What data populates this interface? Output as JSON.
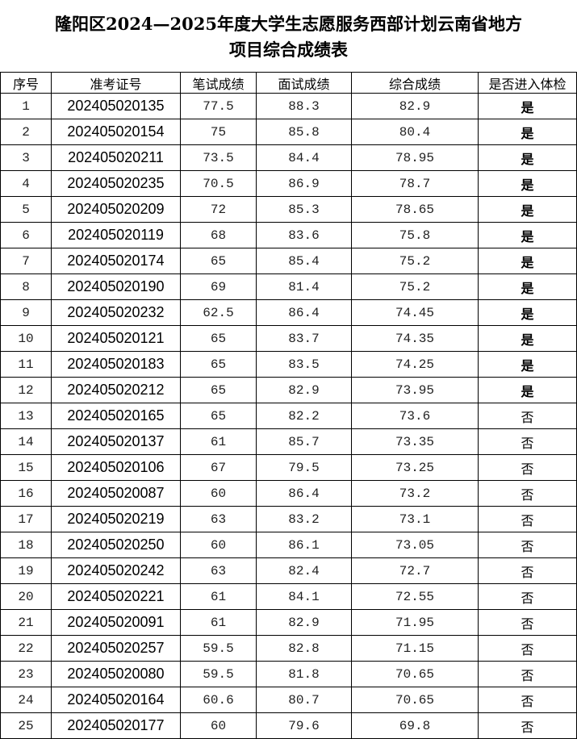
{
  "title_line1": "隆阳区2024—2025年度大学生志愿服务西部计划云南省地方",
  "title_line2": "项目综合成绩表",
  "headers": [
    "序号",
    "准考证号",
    "笔试成绩",
    "面试成绩",
    "综合成绩",
    "是否进入体检"
  ],
  "rows": [
    [
      "1",
      "202405020135",
      "77.5",
      "88.3",
      "82.9",
      "是"
    ],
    [
      "2",
      "202405020154",
      "75",
      "85.8",
      "80.4",
      "是"
    ],
    [
      "3",
      "202405020211",
      "73.5",
      "84.4",
      "78.95",
      "是"
    ],
    [
      "4",
      "202405020235",
      "70.5",
      "86.9",
      "78.7",
      "是"
    ],
    [
      "5",
      "202405020209",
      "72",
      "85.3",
      "78.65",
      "是"
    ],
    [
      "6",
      "202405020119",
      "68",
      "83.6",
      "75.8",
      "是"
    ],
    [
      "7",
      "202405020174",
      "65",
      "85.4",
      "75.2",
      "是"
    ],
    [
      "8",
      "202405020190",
      "69",
      "81.4",
      "75.2",
      "是"
    ],
    [
      "9",
      "202405020232",
      "62.5",
      "86.4",
      "74.45",
      "是"
    ],
    [
      "10",
      "202405020121",
      "65",
      "83.7",
      "74.35",
      "是"
    ],
    [
      "11",
      "202405020183",
      "65",
      "83.5",
      "74.25",
      "是"
    ],
    [
      "12",
      "202405020212",
      "65",
      "82.9",
      "73.95",
      "是"
    ],
    [
      "13",
      "202405020165",
      "65",
      "82.2",
      "73.6",
      "否"
    ],
    [
      "14",
      "202405020137",
      "61",
      "85.7",
      "73.35",
      "否"
    ],
    [
      "15",
      "202405020106",
      "67",
      "79.5",
      "73.25",
      "否"
    ],
    [
      "16",
      "202405020087",
      "60",
      "86.4",
      "73.2",
      "否"
    ],
    [
      "17",
      "202405020219",
      "63",
      "83.2",
      "73.1",
      "否"
    ],
    [
      "18",
      "202405020250",
      "60",
      "86.1",
      "73.05",
      "否"
    ],
    [
      "19",
      "202405020242",
      "63",
      "82.4",
      "72.7",
      "否"
    ],
    [
      "20",
      "202405020221",
      "61",
      "84.1",
      "72.55",
      "否"
    ],
    [
      "21",
      "202405020091",
      "61",
      "82.9",
      "71.95",
      "否"
    ],
    [
      "22",
      "202405020257",
      "59.5",
      "82.8",
      "71.15",
      "否"
    ],
    [
      "23",
      "202405020080",
      "59.5",
      "81.8",
      "70.65",
      "否"
    ],
    [
      "24",
      "202405020164",
      "60.6",
      "80.7",
      "70.65",
      "否"
    ],
    [
      "25",
      "202405020177",
      "60",
      "79.6",
      "69.8",
      "否"
    ]
  ]
}
